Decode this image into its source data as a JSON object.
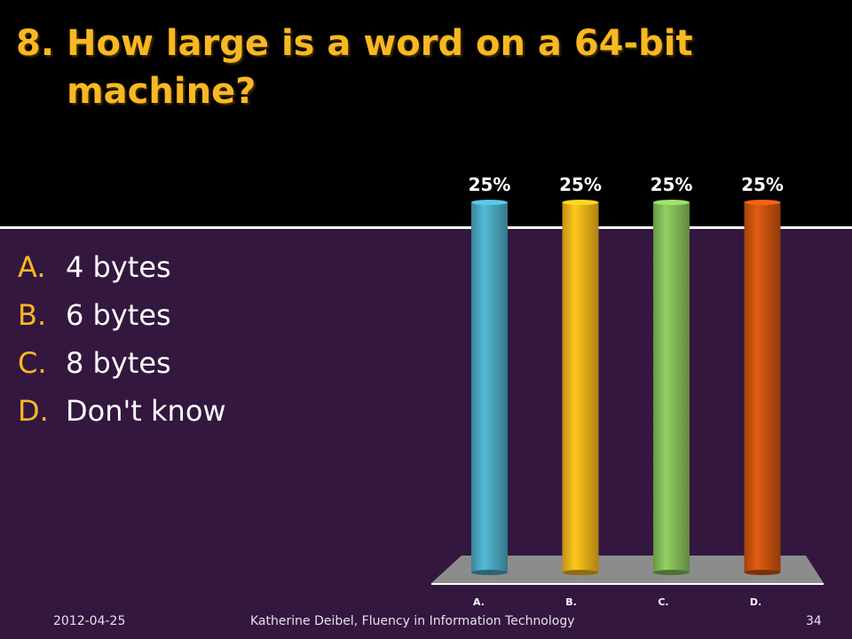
{
  "slide": {
    "question_number": "8.",
    "question_text": "How large is a word on a 64-bit machine?",
    "answers": [
      {
        "letter": "A.",
        "text": "4 bytes"
      },
      {
        "letter": "B.",
        "text": "6 bytes"
      },
      {
        "letter": "C.",
        "text": "8 bytes"
      },
      {
        "letter": "D.",
        "text": "Don't know"
      }
    ],
    "colors": {
      "background": "#33173f",
      "title_band": "#000000",
      "accent": "#f8b823",
      "answer_text": "#ffffff"
    }
  },
  "chart_data": {
    "type": "bar",
    "categories": [
      "A.",
      "B.",
      "C.",
      "D."
    ],
    "values": [
      25,
      25,
      25,
      25
    ],
    "data_labels": [
      "25%",
      "25%",
      "25%",
      "25%"
    ],
    "bar_colors": [
      "#4aa6c0",
      "#f3b31a",
      "#82bb58",
      "#c9520f"
    ],
    "ylim": [
      0,
      25
    ],
    "style": "3d-cylinder",
    "grid": false,
    "legend": "none"
  },
  "footer": {
    "date": "2012-04-25",
    "center": "Katherine Deibel, Fluency in Information Technology",
    "page": "34"
  }
}
